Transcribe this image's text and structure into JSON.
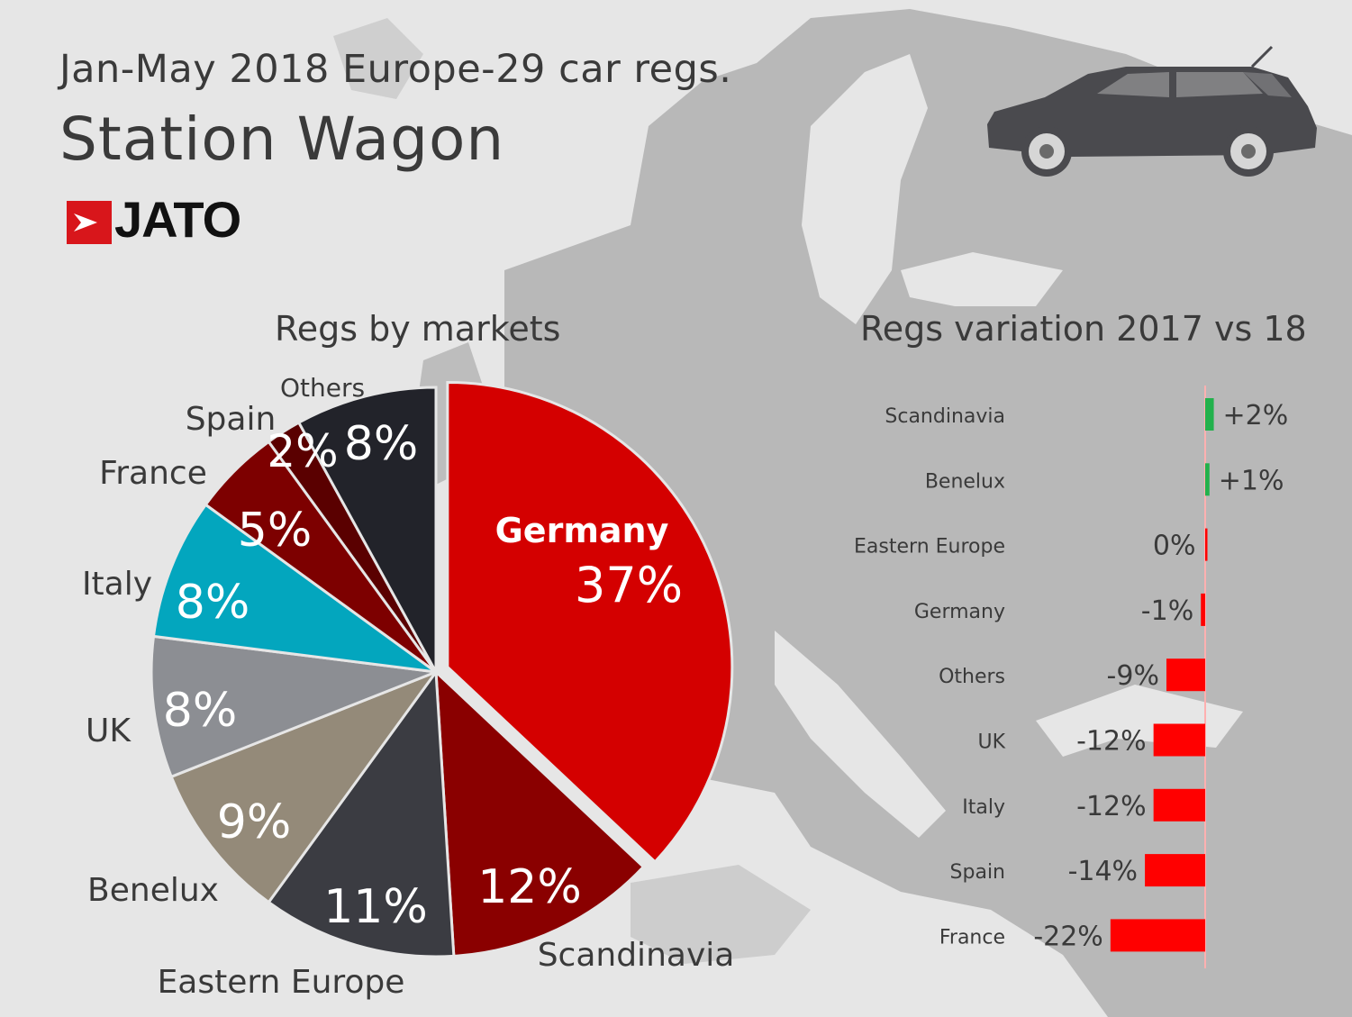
{
  "header": {
    "subtitle": "Jan-May 2018 Europe-29 car regs.",
    "title": "Station Wagon",
    "brand": "JATO"
  },
  "colors": {
    "brand_red": "#d8161b",
    "text": "#3a3a3a",
    "positive": "#22b14c",
    "negative": "#ff0000",
    "axis_line": "#ffb0b0"
  },
  "icons": {
    "car": "station-wagon-icon",
    "logo": "jato-logo-icon"
  },
  "chart_data": [
    {
      "type": "pie",
      "title": "Regs by markets",
      "unit": "%",
      "slices": [
        {
          "label": "Germany",
          "value": 37,
          "display": "37%",
          "color": "#d40000"
        },
        {
          "label": "Scandinavia",
          "value": 12,
          "display": "12%",
          "color": "#8a0000"
        },
        {
          "label": "Eastern Europe",
          "value": 11,
          "display": "11%",
          "color": "#3b3c42"
        },
        {
          "label": "Benelux",
          "value": 9,
          "display": "9%",
          "color": "#948a79"
        },
        {
          "label": "UK",
          "value": 8,
          "display": "8%",
          "color": "#8c8e93"
        },
        {
          "label": "Italy",
          "value": 8,
          "display": "8%",
          "color": "#03a6be"
        },
        {
          "label": "France",
          "value": 5,
          "display": "5%",
          "color": "#7d0000"
        },
        {
          "label": "Spain",
          "value": 2,
          "display": "2%",
          "color": "#5a0000"
        },
        {
          "label": "Others",
          "value": 8,
          "display": "8%",
          "color": "#22232a"
        }
      ]
    },
    {
      "type": "bar",
      "orientation": "horizontal",
      "title": "Regs variation 2017 vs 18",
      "unit": "%",
      "categories": [
        "Scandinavia",
        "Benelux",
        "Eastern Europe",
        "Germany",
        "Others",
        "UK",
        "Italy",
        "Spain",
        "France"
      ],
      "values": [
        2,
        1,
        0,
        -1,
        -9,
        -12,
        -12,
        -14,
        -22
      ],
      "labels": [
        "+2%",
        "+1%",
        "0%",
        "-1%",
        "-9%",
        "-12%",
        "-12%",
        "-14%",
        "-22%"
      ]
    }
  ]
}
